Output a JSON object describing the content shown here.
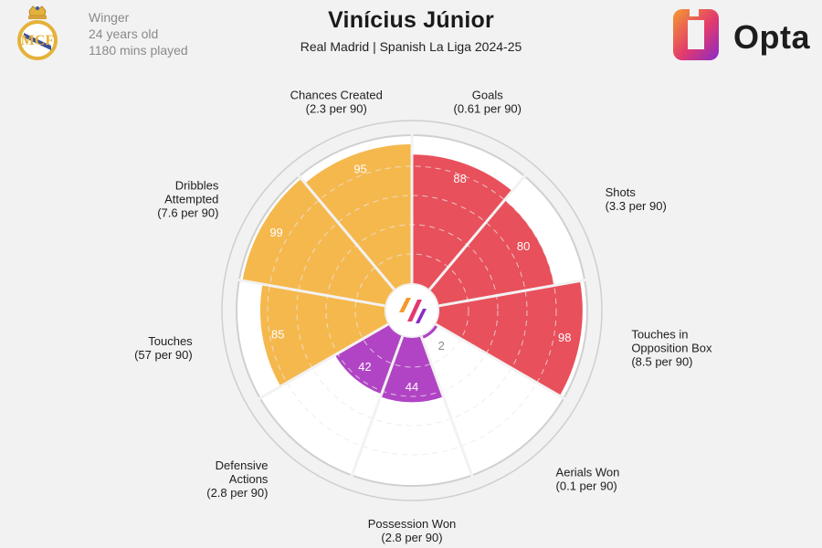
{
  "player": {
    "name": "Vinícius Júnior",
    "position": "Winger",
    "age": "24 years old",
    "minutes": "1180 mins played",
    "subtitle": "Real Madrid | Spanish La Liga 2024-25"
  },
  "brand": {
    "name": "Opta"
  },
  "colors": {
    "attacking": "#e8505b",
    "possession": "#f5b84d",
    "defending": "#b144c4",
    "background": "#f2f2f2",
    "ring": "#cfcfcf"
  },
  "chart_data": {
    "type": "radar",
    "title": "Vinícius Júnior",
    "subtitle": "Real Madrid | Spanish La Liga 2024-25",
    "scale": "percentile 0-100",
    "metrics": [
      {
        "name": "Goals",
        "detail": "(0.61 per 90)",
        "percentile": 88,
        "group": "attacking"
      },
      {
        "name": "Shots",
        "detail": "(3.3 per 90)",
        "percentile": 80,
        "group": "attacking"
      },
      {
        "name": "Touches in Opposition Box",
        "detail": "(8.5 per 90)",
        "percentile": 98,
        "group": "attacking"
      },
      {
        "name": "Aerials Won",
        "detail": "(0.1 per 90)",
        "percentile": 2,
        "group": "defending"
      },
      {
        "name": "Possession Won",
        "detail": "(2.8 per 90)",
        "percentile": 44,
        "group": "defending"
      },
      {
        "name": "Defensive Actions",
        "detail": "(2.8 per 90)",
        "percentile": 42,
        "group": "defending"
      },
      {
        "name": "Touches",
        "detail": "(57 per 90)",
        "percentile": 85,
        "group": "possession"
      },
      {
        "name": "Dribbles Attempted",
        "detail": "(7.6 per 90)",
        "percentile": 99,
        "group": "possession"
      },
      {
        "name": "Chances Created",
        "detail": "(2.3 per 90)",
        "percentile": 95,
        "group": "possession"
      }
    ]
  }
}
